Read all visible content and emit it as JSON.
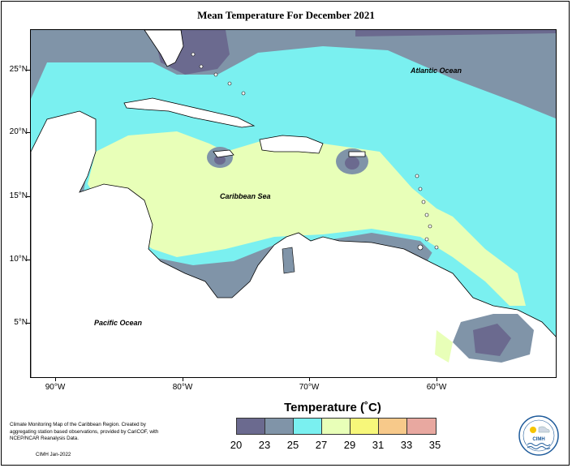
{
  "title": "Mean Temperature For December 2021",
  "labels": {
    "atlantic": "Atlantic Ocean",
    "caribbean": "Caribbean Sea",
    "pacific": "Pacific Ocean"
  },
  "lat_ticks": [
    "25°N",
    "20°N",
    "15°N",
    "10°N",
    "5°N"
  ],
  "lon_ticks": [
    "90°W",
    "80°W",
    "70°W",
    "60°W"
  ],
  "legend": {
    "title": "Temperature (˚C)",
    "values": [
      "20",
      "23",
      "25",
      "27",
      "29",
      "31",
      "33",
      "35"
    ],
    "colors": [
      "#6b6a8f",
      "#8094a8",
      "#7af0f0",
      "#e8ffb8",
      "#f7f77a",
      "#f7c98a",
      "#e8a8a0"
    ]
  },
  "credit": {
    "text": "Climate Monitoring Map of the Caribbean Region. Created by aggregating station based observations, provided by CariCOF, with NCEP/NCAR Reanalysis Data.",
    "issuer": "CIMH Jan-2022"
  },
  "logo": {
    "text": "CIMH"
  }
}
